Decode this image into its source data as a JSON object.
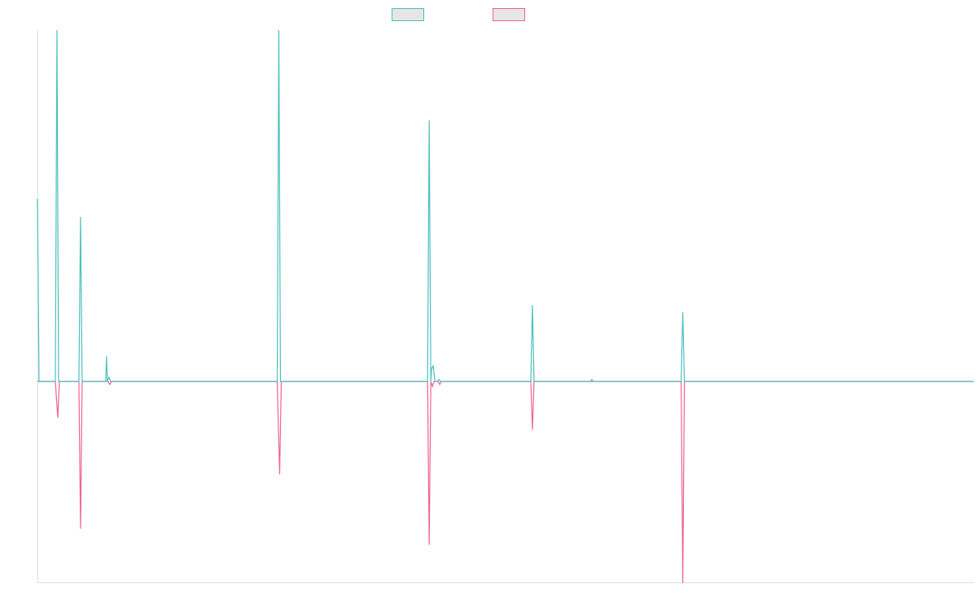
{
  "chart_data": {
    "type": "line",
    "title": "",
    "xlabel": "",
    "ylabel": "",
    "grid": false,
    "legend_position": "top-center",
    "xlim": [
      0,
      1152
    ],
    "ylim": [
      -100,
      175
    ],
    "series": [
      {
        "color": "#4bc0c0",
        "legend_fill": "#e6e6e6",
        "points": [
          [
            0,
            91
          ],
          [
            2,
            0
          ],
          [
            22,
            0
          ],
          [
            24,
            175
          ],
          [
            26,
            0
          ],
          [
            51,
            0
          ],
          [
            53,
            82
          ],
          [
            55,
            0
          ],
          [
            84,
            0
          ],
          [
            85,
            12.5
          ],
          [
            86,
            0
          ],
          [
            87,
            1
          ],
          [
            88,
            2
          ],
          [
            89,
            1
          ],
          [
            90,
            0
          ],
          [
            295,
            0
          ],
          [
            297,
            175
          ],
          [
            299,
            0
          ],
          [
            480,
            0
          ],
          [
            482,
            130
          ],
          [
            484,
            0
          ],
          [
            485,
            6
          ],
          [
            487,
            8
          ],
          [
            489,
            0
          ],
          [
            492,
            0
          ],
          [
            494,
            1
          ],
          [
            496,
            0
          ],
          [
            607,
            0
          ],
          [
            609,
            38
          ],
          [
            611,
            0
          ],
          [
            680,
            0
          ],
          [
            682,
            1
          ],
          [
            684,
            0
          ],
          [
            792,
            0
          ],
          [
            794,
            34.5
          ],
          [
            796,
            0
          ],
          [
            1152,
            0
          ]
        ]
      },
      {
        "color": "#f06292",
        "legend_fill": "#e6e6e6",
        "points": [
          [
            0,
            0
          ],
          [
            22,
            0
          ],
          [
            25,
            -18
          ],
          [
            27,
            0
          ],
          [
            51,
            0
          ],
          [
            53,
            -73
          ],
          [
            55,
            0
          ],
          [
            87,
            0
          ],
          [
            89,
            -1.5
          ],
          [
            91,
            0
          ],
          [
            295,
            0
          ],
          [
            298,
            -46
          ],
          [
            300,
            0
          ],
          [
            480,
            0
          ],
          [
            482,
            -81
          ],
          [
            484,
            0
          ],
          [
            486,
            -2.5
          ],
          [
            488,
            0
          ],
          [
            493,
            0
          ],
          [
            495,
            -1.5
          ],
          [
            497,
            0
          ],
          [
            607,
            0
          ],
          [
            609,
            -24
          ],
          [
            611,
            0
          ],
          [
            792,
            0
          ],
          [
            794,
            -100
          ],
          [
            796,
            0
          ],
          [
            1152,
            0
          ]
        ]
      }
    ]
  }
}
